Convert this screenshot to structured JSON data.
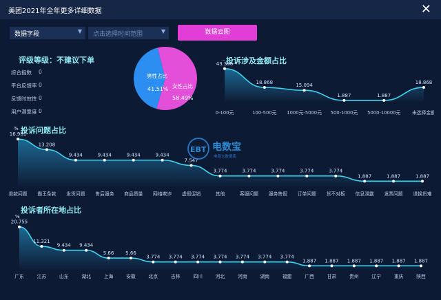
{
  "window": {
    "title": "美团2021年全年更多详细数据",
    "close_icon": "close-icon"
  },
  "controls": {
    "data_field": "数据字段",
    "time_placeholder": "点击选择时间范围",
    "cloud_button": "数据云图"
  },
  "rating": {
    "title": "评级等级：不建议下单",
    "rows": [
      {
        "label": "综合指数",
        "value": "0"
      },
      {
        "label": "平台反馈率",
        "value": "0"
      },
      {
        "label": "反馈时效性",
        "value": "0"
      },
      {
        "label": "用户满意度",
        "value": "0"
      }
    ]
  },
  "gender": {
    "male_label": "男性占比",
    "male_value": "41.51%",
    "female_label": "女性占比",
    "female_value": "58.49%",
    "male_fraction": 0.4151,
    "colors": {
      "male": "#2b8ef0",
      "female": "#e34fd9"
    }
  },
  "watermark": {
    "name": "电数宝",
    "sub": "电商大数据库",
    "logo": "EBT"
  },
  "amount_chart": {
    "title": "投诉涉及金额占比",
    "ylabel": "%",
    "chart_data": {
      "type": "area",
      "categories": [
        "0-100元",
        "100-500元",
        "1000元-5000元",
        "500-1000元",
        "5000-10000元",
        "未选择金额"
      ],
      "values": [
        43.396,
        18.868,
        15.094,
        1.887,
        1.887,
        18.868
      ],
      "ylim": [
        0,
        45
      ]
    }
  },
  "issue_chart": {
    "title": "投诉问题占比",
    "ylabel": "%",
    "chart_data": {
      "type": "area",
      "categories": [
        "退款问题",
        "霸王条款",
        "发货问题",
        "售后服务",
        "商品质量",
        "网络欺诈",
        "虚假促销",
        "其他",
        "客服问题",
        "服务售假",
        "订单问题",
        "货不对板",
        "信息泄露",
        "发票问题",
        "退换货难"
      ],
      "values": [
        16.981,
        13.208,
        9.434,
        9.434,
        9.434,
        9.434,
        7.547,
        3.774,
        3.774,
        3.774,
        3.774,
        3.774,
        1.887,
        1.887,
        1.887
      ],
      "ylim": [
        0,
        18
      ]
    }
  },
  "region_chart": {
    "title": "投诉者所在地占比",
    "ylabel": "%",
    "chart_data": {
      "type": "area",
      "categories": [
        "广东",
        "江苏",
        "山东",
        "湖北",
        "上海",
        "安徽",
        "北京",
        "吉林",
        "四川",
        "河北",
        "河南",
        "湖南",
        "福建",
        "广西",
        "甘肃",
        "贵州",
        "辽宁",
        "重庆",
        "陕西"
      ],
      "values": [
        20.755,
        11.321,
        9.434,
        9.434,
        5.66,
        5.66,
        3.774,
        3.774,
        3.774,
        3.774,
        3.774,
        3.774,
        3.774,
        1.887,
        1.887,
        1.887,
        1.887,
        1.887,
        1.887
      ],
      "ylim": [
        0,
        22
      ]
    }
  },
  "colors": {
    "line": "#3fd3f0",
    "bg": "#0d1a33",
    "accent": "#e03ed6"
  }
}
